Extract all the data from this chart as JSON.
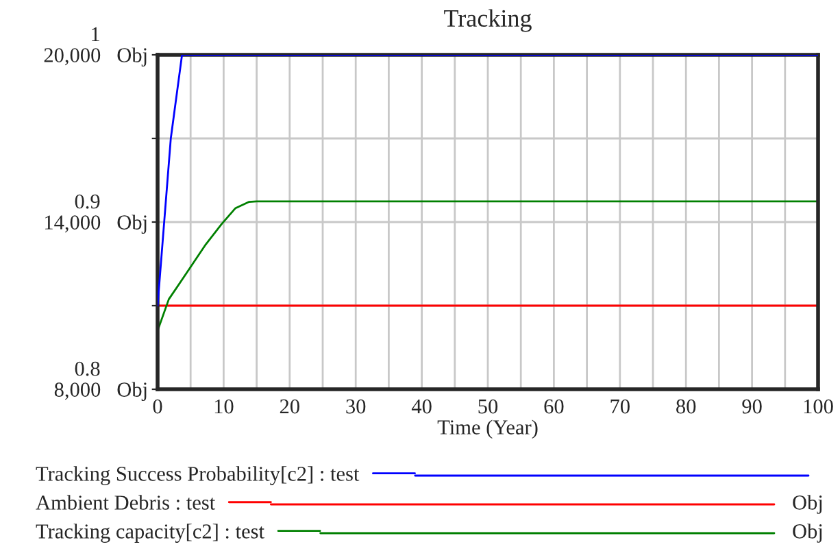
{
  "chart_data": {
    "type": "line",
    "title": "Tracking",
    "xlabel": "Time (Year)",
    "x": [
      0,
      1.7,
      4.5,
      7.3,
      9.7,
      11.8,
      13.8,
      15,
      100
    ],
    "series": [
      {
        "name": "Tracking Success Probability[c2] : test",
        "color": "#0000ff",
        "axis": "y2",
        "x": [
          0,
          2,
          3.7,
          100
        ],
        "values": [
          0.85,
          0.95,
          1,
          1
        ]
      },
      {
        "name": "Ambient Debris : test",
        "color": "#ff0000",
        "x": [
          0,
          100
        ],
        "values": [
          11000,
          11000
        ]
      },
      {
        "name": "Tracking capacity[c2] : test",
        "color": "#008000",
        "values": [
          10100,
          11230,
          12210,
          13200,
          13930,
          14500,
          14720,
          14740,
          14740
        ]
      }
    ],
    "xlim": [
      0,
      100
    ],
    "xticks": [
      0,
      {
        "value": 5,
        "label": null
      },
      10,
      {
        "value": 15,
        "label": null
      },
      20,
      {
        "value": 25,
        "label": null
      },
      30,
      {
        "value": 35,
        "label": null
      },
      40,
      {
        "value": 45,
        "label": null
      },
      50,
      {
        "value": 55,
        "label": null
      },
      60,
      {
        "value": 65,
        "label": null
      },
      70,
      {
        "value": 75,
        "label": null
      },
      80,
      {
        "value": 85,
        "label": null
      },
      90,
      {
        "value": 95,
        "label": null
      },
      100
    ],
    "ylim": [
      8000,
      20000
    ],
    "yticks": [
      {
        "value": 8000,
        "label": "8,000   Obj"
      },
      {
        "value": 11000,
        "label": null
      },
      {
        "value": 14000,
        "label": "14,000   Obj"
      },
      {
        "value": 17000,
        "label": null
      },
      {
        "value": 20000,
        "label": "20,000   Obj"
      }
    ],
    "y2lim": [
      0.8,
      1
    ],
    "y2ticks": [
      0.8,
      0.9,
      1
    ],
    "annotations": [
      "Obj",
      "Obj"
    ],
    "grid": true,
    "legend": "bottom"
  }
}
